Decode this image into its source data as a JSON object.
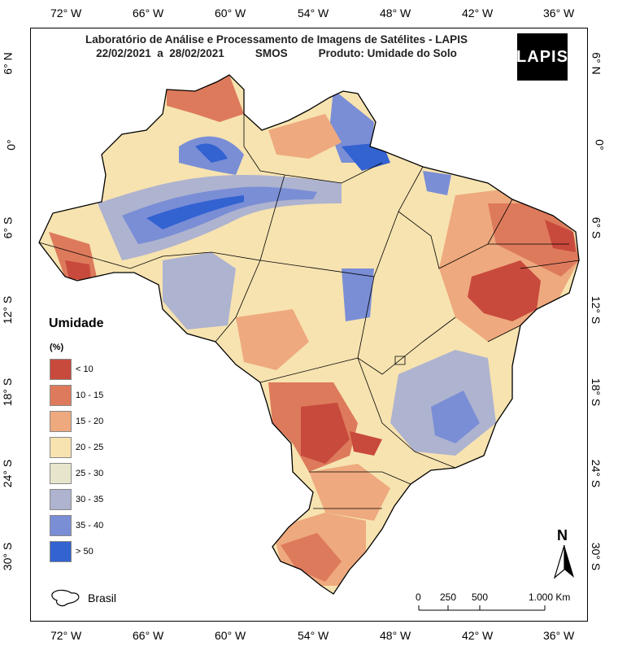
{
  "header": {
    "line1": "Laboratório de Análise e Processamento de Imagens de Satélites - LAPIS",
    "line2_dates": "22/02/2021  a  28/02/2021",
    "line2_sensor": "SMOS",
    "line2_product": "Produto: Umidade do Solo",
    "logo_text": "LAPIS"
  },
  "axes": {
    "longitude_labels": [
      "72° W",
      "66° W",
      "60° W",
      "54° W",
      "48° W",
      "42° W",
      "36° W"
    ],
    "latitude_labels": [
      "6° N",
      "0°",
      "6° S",
      "12° S",
      "18° S",
      "24° S",
      "30° S"
    ]
  },
  "legend": {
    "title": "Umidade",
    "unit": "(%)",
    "items": [
      {
        "label": "< 10",
        "color": "#c84a3c"
      },
      {
        "label": "10 - 15",
        "color": "#dd7a5c"
      },
      {
        "label": "15 - 20",
        "color": "#eea97e"
      },
      {
        "label": "20 - 25",
        "color": "#f7e3b0"
      },
      {
        "label": "25 - 30",
        "color": "#e7e6cc"
      },
      {
        "label": "30 - 35",
        "color": "#aeb3cf"
      },
      {
        "label": "35 - 40",
        "color": "#7a8ed6"
      },
      {
        "label": "> 50",
        "color": "#3362d1"
      }
    ],
    "brasil_label": "Brasil"
  },
  "scalebar": {
    "labels": [
      "0",
      "250",
      "500",
      "1.000 Km"
    ]
  },
  "north_arrow": {
    "label": "N"
  }
}
